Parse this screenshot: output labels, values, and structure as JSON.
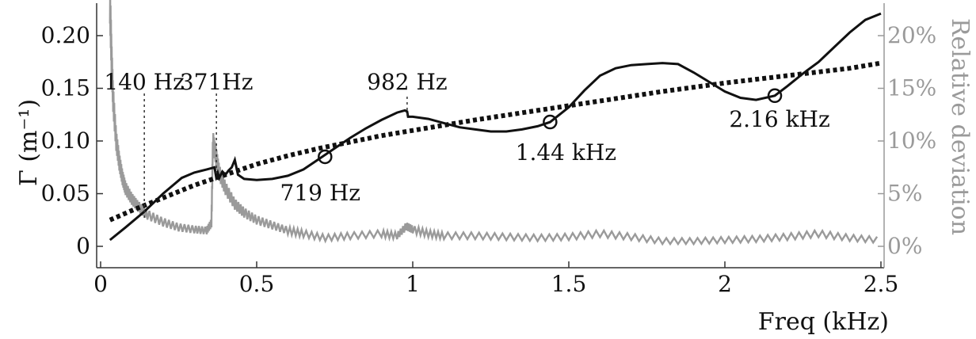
{
  "chart_data": {
    "type": "line",
    "xlabel": "Freq (kHz)",
    "ylabel_left": "Γ (m⁻¹)",
    "ylabel_right": "Relative deviation",
    "xlim": [
      0,
      2.5
    ],
    "ylim_left": [
      0,
      0.23
    ],
    "ylim_right_percent": [
      0,
      23
    ],
    "grid": false,
    "x_ticks": [
      "0",
      "0.5",
      "1",
      "1.5",
      "2",
      "2.5"
    ],
    "y_left_ticks": [
      "0",
      "0.05",
      "0.10",
      "0.15",
      "0.20"
    ],
    "y_right_ticks": [
      "0%",
      "5%",
      "10%",
      "15%",
      "20%"
    ],
    "series": [
      {
        "style": "solid-black",
        "x": [
          0.03,
          0.08,
          0.14,
          0.2,
          0.26,
          0.3,
          0.34,
          0.365,
          0.37,
          0.375,
          0.38,
          0.39,
          0.4,
          0.41,
          0.42,
          0.43,
          0.44,
          0.46,
          0.5,
          0.55,
          0.6,
          0.65,
          0.7,
          0.75,
          0.8,
          0.85,
          0.9,
          0.95,
          0.975,
          0.982,
          0.985,
          1.0,
          1.05,
          1.1,
          1.15,
          1.2,
          1.25,
          1.3,
          1.35,
          1.4,
          1.44,
          1.5,
          1.55,
          1.6,
          1.65,
          1.7,
          1.75,
          1.8,
          1.85,
          1.9,
          1.95,
          2.0,
          2.05,
          2.1,
          2.16,
          2.2,
          2.25,
          2.3,
          2.35,
          2.4,
          2.45,
          2.5
        ],
        "y": [
          0.006,
          0.018,
          0.033,
          0.05,
          0.065,
          0.07,
          0.073,
          0.075,
          0.066,
          0.07,
          0.065,
          0.071,
          0.068,
          0.072,
          0.075,
          0.082,
          0.068,
          0.064,
          0.063,
          0.064,
          0.067,
          0.073,
          0.083,
          0.093,
          0.103,
          0.112,
          0.12,
          0.127,
          0.129,
          0.128,
          0.123,
          0.123,
          0.121,
          0.117,
          0.113,
          0.111,
          0.109,
          0.109,
          0.111,
          0.114,
          0.118,
          0.132,
          0.148,
          0.162,
          0.169,
          0.172,
          0.173,
          0.174,
          0.173,
          0.165,
          0.156,
          0.147,
          0.141,
          0.139,
          0.143,
          0.152,
          0.164,
          0.175,
          0.189,
          0.203,
          0.215,
          0.221
        ]
      },
      {
        "style": "dotted-black-fit",
        "x": [
          0.03,
          0.1,
          0.2,
          0.3,
          0.4,
          0.5,
          0.6,
          0.7,
          0.8,
          0.9,
          1.0,
          1.2,
          1.4,
          1.6,
          1.8,
          2.0,
          2.2,
          2.4,
          2.5
        ],
        "y": [
          0.025,
          0.034,
          0.046,
          0.058,
          0.068,
          0.078,
          0.086,
          0.093,
          0.099,
          0.105,
          0.11,
          0.12,
          0.129,
          0.138,
          0.147,
          0.155,
          0.162,
          0.169,
          0.174
        ]
      },
      {
        "style": "gray-relative-deviation",
        "axis": "right",
        "x": [
          0.03,
          0.035,
          0.04,
          0.05,
          0.06,
          0.07,
          0.08,
          0.1,
          0.12,
          0.15,
          0.2,
          0.25,
          0.3,
          0.34,
          0.355,
          0.36,
          0.37,
          0.38,
          0.4,
          0.43,
          0.46,
          0.5,
          0.55,
          0.6,
          0.65,
          0.72,
          0.8,
          0.9,
          0.95,
          0.98,
          1.0,
          1.05,
          1.1,
          1.2,
          1.3,
          1.4,
          1.5,
          1.6,
          1.7,
          1.8,
          1.9,
          2.0,
          2.1,
          2.2,
          2.3,
          2.4,
          2.5
        ],
        "y": [
          23,
          18,
          14,
          10,
          8,
          6.5,
          5.5,
          4.5,
          3.8,
          3.0,
          2.3,
          1.8,
          1.6,
          1.5,
          2.2,
          10,
          8.5,
          7,
          5.5,
          4,
          3.2,
          2.5,
          2.0,
          1.5,
          1.2,
          0.8,
          1.0,
          1.2,
          1.0,
          1.9,
          1.6,
          1.2,
          1.0,
          1.0,
          0.9,
          0.8,
          0.9,
          1.2,
          0.9,
          0.5,
          0.5,
          0.6,
          0.7,
          0.9,
          1.2,
          0.8,
          0.6
        ]
      }
    ],
    "annotations": [
      {
        "text": "140 Hz",
        "x": 0.14
      },
      {
        "text": "371Hz",
        "x": 0.371
      },
      {
        "text": "982 Hz",
        "x": 0.982
      },
      {
        "text": "719 Hz",
        "x": 0.719,
        "marker_y": 0.085
      },
      {
        "text": "1.44 kHz",
        "x": 1.44,
        "marker_y": 0.118
      },
      {
        "text": "2.16 kHz",
        "x": 2.16,
        "marker_y": 0.143
      }
    ]
  }
}
